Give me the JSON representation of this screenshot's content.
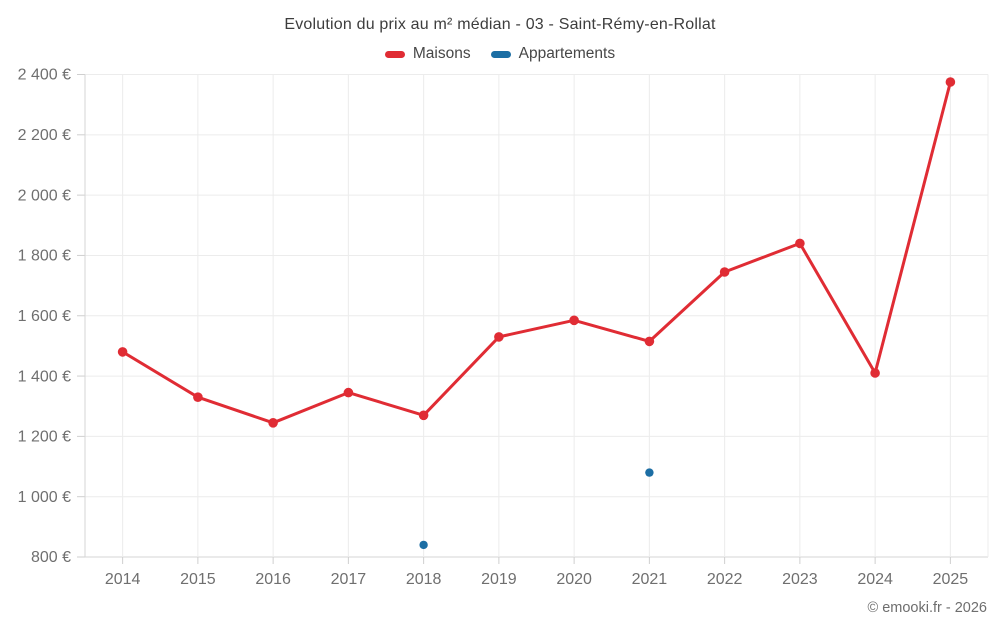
{
  "header": {
    "title": "Evolution du prix au m² médian - 03 - Saint-Rémy-en-Rollat",
    "legend": [
      {
        "label": "Maisons",
        "color": "#e02c34"
      },
      {
        "label": "Appartements",
        "color": "#1c6ea4"
      }
    ]
  },
  "chart_data": {
    "type": "line",
    "title": "Evolution du prix au m² médian - 03 - Saint-Rémy-en-Rollat",
    "xlabel": "",
    "ylabel": "",
    "categories": [
      "2014",
      "2015",
      "2016",
      "2017",
      "2018",
      "2019",
      "2020",
      "2021",
      "2022",
      "2023",
      "2024",
      "2025"
    ],
    "series": [
      {
        "name": "Maisons",
        "color": "#e02c34",
        "style": "line-with-markers",
        "values": [
          1480,
          1330,
          1245,
          1345,
          1270,
          1530,
          1585,
          1515,
          1745,
          1840,
          1410,
          2375
        ]
      },
      {
        "name": "Appartements",
        "color": "#1c6ea4",
        "style": "markers-only",
        "values": [
          null,
          null,
          null,
          null,
          840,
          null,
          null,
          1080,
          null,
          null,
          null,
          null
        ]
      }
    ],
    "ylim": [
      800,
      2400
    ],
    "yticks": [
      800,
      1000,
      1200,
      1400,
      1600,
      1800,
      2000,
      2200,
      2400
    ],
    "ytick_labels": [
      "800 €",
      "1 000 €",
      "1 200 €",
      "1 400 €",
      "1 600 €",
      "1 800 €",
      "2 000 €",
      "2 200 €",
      "2 400 €"
    ],
    "currency_suffix": "€",
    "grid": true,
    "legend_position": "top"
  },
  "footer": {
    "copyright": "© emooki.fr - 2026"
  },
  "colors": {
    "gridline": "#ececec",
    "axis_line": "#d6d6d6",
    "tick": "#cfcfcf",
    "axis_label": "#6f6f6f",
    "title_text": "#3d3d3d",
    "legend_text": "#474747",
    "footer_text": "#6e6e6e",
    "background": "#ffffff"
  }
}
